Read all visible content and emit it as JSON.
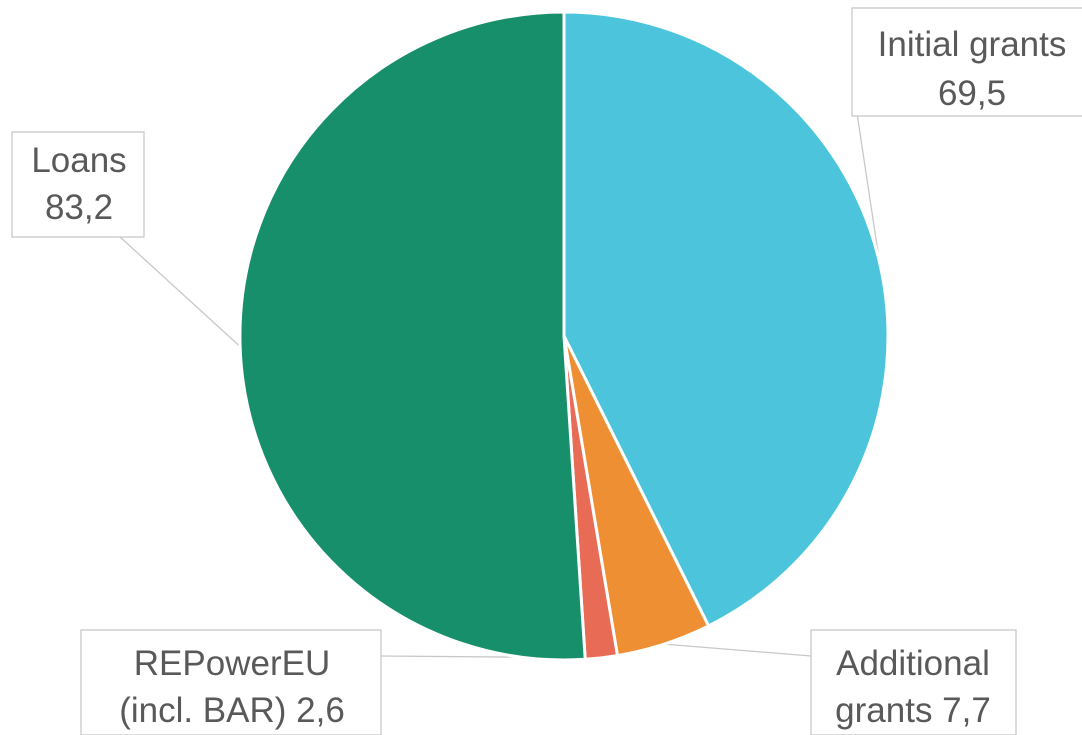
{
  "chart_data": {
    "type": "pie",
    "title": "",
    "slices": [
      {
        "label_lines": [
          "Initial grants",
          "69,5"
        ],
        "name": "Initial grants",
        "value": 69.5,
        "value_label": "69,5",
        "color": "#4bc4dc"
      },
      {
        "label_lines": [
          "Additional",
          "grants 7,7"
        ],
        "name": "Additional grants",
        "value": 7.7,
        "value_label": "7,7",
        "color": "#ee8f33"
      },
      {
        "label_lines": [
          "REPowerEU",
          "(incl. BAR) 2,6"
        ],
        "name": "REPowerEU (incl. BAR)",
        "value": 2.6,
        "value_label": "2,6",
        "color": "#e86b55"
      },
      {
        "label_lines": [
          "Loans",
          "83,2"
        ],
        "name": "Loans",
        "value": 83.2,
        "value_label": "83,2",
        "color": "#178f6a"
      }
    ],
    "start_angle_deg": 0,
    "direction": "clockwise",
    "legend": "none",
    "data_labels": "callouts"
  }
}
